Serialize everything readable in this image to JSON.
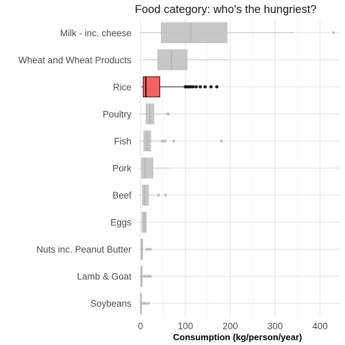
{
  "chart_data": {
    "type": "boxplot",
    "title": "Food category: who's the hungriest?",
    "xlabel": "Consumption (kg/person/year)",
    "ylabel": "",
    "xlim": [
      -5,
      445
    ],
    "x_ticks": [
      0,
      100,
      200,
      300,
      400
    ],
    "grid": true,
    "highlight_category": "Rice",
    "colors": {
      "default_fill": "#bebebe",
      "default_stroke": "#bcbcbc",
      "highlight_fill": "#f8615f",
      "highlight_stroke": "#1a1a1a"
    },
    "categories": [
      "Milk - inc. cheese",
      "Wheat and Wheat Products",
      "Rice",
      "Poultry",
      "Fish",
      "Pork",
      "Beef",
      "Eggs",
      "Nuts inc. Peanut Butter",
      "Lamb & Goat",
      "Soybeans"
    ],
    "series": [
      {
        "category": "Milk - inc. cheese",
        "whisker_low": 0,
        "q1": 46,
        "median": 112,
        "q3": 193,
        "whisker_high": 343,
        "outliers": [
          430
        ]
      },
      {
        "category": "Wheat and Wheat Products",
        "whisker_low": 5,
        "q1": 38,
        "median": 69,
        "q3": 104,
        "whisker_high": 197,
        "outliers": []
      },
      {
        "category": "Rice",
        "whisker_low": 2,
        "q1": 6,
        "median": 12,
        "q3": 43,
        "whisker_high": 98,
        "outliers": [
          100,
          104,
          108,
          112,
          117,
          124,
          133,
          144,
          157,
          170
        ]
      },
      {
        "category": "Poultry",
        "whisker_low": 2,
        "q1": 12,
        "median": 21,
        "q3": 30,
        "whisker_high": 56,
        "outliers": [
          60,
          62
        ]
      },
      {
        "category": "Fish",
        "whisker_low": 1,
        "q1": 7,
        "median": 15,
        "q3": 23,
        "whisker_high": 45,
        "outliers": [
          48,
          52,
          55,
          74,
          180
        ]
      },
      {
        "category": "Pork",
        "whisker_low": 0,
        "q1": 2,
        "median": 10,
        "q3": 28,
        "whisker_high": 68,
        "outliers": []
      },
      {
        "category": "Beef",
        "whisker_low": 0,
        "q1": 4,
        "median": 9,
        "q3": 18,
        "whisker_high": 35,
        "outliers": [
          40,
          56
        ]
      },
      {
        "category": "Eggs",
        "whisker_low": 0,
        "q1": 3,
        "median": 8,
        "q3": 13,
        "whisker_high": 14,
        "outliers": []
      },
      {
        "category": "Nuts inc. Peanut Butter",
        "whisker_low": 0,
        "q1": 1,
        "median": 2.5,
        "q3": 5,
        "whisker_high": 10,
        "outliers": [
          14,
          16,
          19,
          22
        ]
      },
      {
        "category": "Lamb & Goat",
        "whisker_low": 0,
        "q1": 0.8,
        "median": 2,
        "q3": 4,
        "whisker_high": 7,
        "outliers": [
          8,
          10,
          12,
          14,
          16,
          18,
          20,
          22
        ]
      },
      {
        "category": "Soybeans",
        "whisker_low": 0,
        "q1": 0.1,
        "median": 0.5,
        "q3": 1.5,
        "whisker_high": 3,
        "outliers": [
          5,
          7,
          9,
          12,
          18
        ]
      }
    ]
  }
}
